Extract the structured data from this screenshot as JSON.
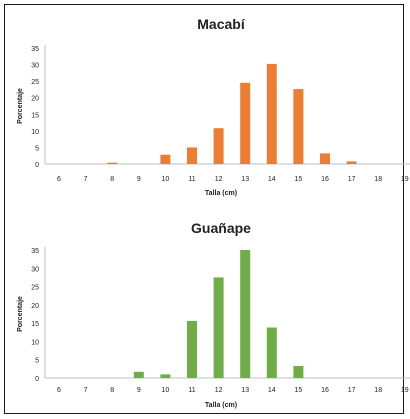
{
  "chart_data": [
    {
      "type": "bar",
      "title": "Macabí",
      "xlabel": "Talla (cm)",
      "ylabel": "Porcentaje",
      "categories": [
        "6",
        "7",
        "8",
        "9",
        "10",
        "11",
        "12",
        "13",
        "14",
        "15",
        "16",
        "17",
        "18",
        "19"
      ],
      "values": [
        0,
        0,
        0.4,
        0,
        2.8,
        5,
        10.8,
        24.5,
        30.2,
        22.6,
        3.2,
        0.8,
        0,
        0
      ],
      "ylim": [
        0,
        35
      ],
      "yticks": [
        "0",
        "5",
        "10",
        "15",
        "20",
        "25",
        "30",
        "35"
      ],
      "color": "#ED7D31",
      "grid": false
    },
    {
      "type": "bar",
      "title": "Guañape",
      "xlabel": "Talla (cm)",
      "ylabel": "Porcentaje",
      "categories": [
        "6",
        "7",
        "8",
        "9",
        "10",
        "11",
        "12",
        "13",
        "14",
        "15",
        "16",
        "17",
        "18",
        "19"
      ],
      "values": [
        0,
        0,
        0,
        1.7,
        1,
        15.6,
        27.5,
        35,
        13.8,
        3.3,
        0,
        0,
        0,
        0
      ],
      "ylim": [
        0,
        35
      ],
      "yticks": [
        "0",
        "5",
        "10",
        "15",
        "20",
        "25",
        "30",
        "35"
      ],
      "color": "#70AD47",
      "grid": false
    }
  ]
}
